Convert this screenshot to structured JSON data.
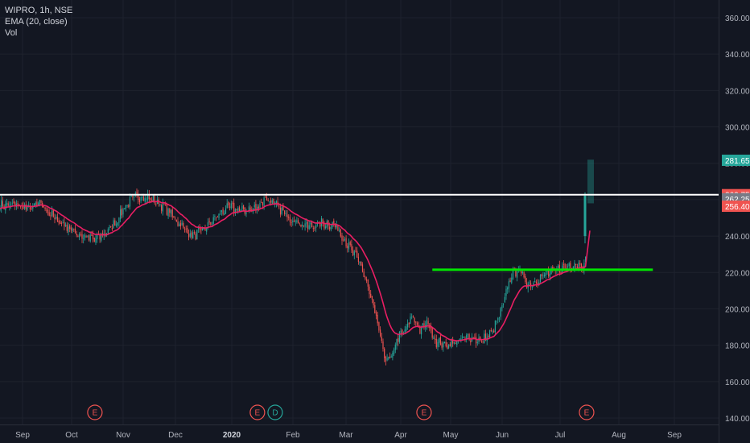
{
  "legend": {
    "symbol_line": "WIPRO, 1h, NSE",
    "indicator_line": "EMA (20, close)",
    "volume_line": "Vol"
  },
  "colors": {
    "background": "#131722",
    "grid": "#1e222d",
    "up_candle": "#26a69a",
    "down_candle": "#ef5350",
    "ema": "#e91e63",
    "support_line": "#00e600",
    "resistance_line": "#ffffff",
    "axis_text": "#b2b5be",
    "earnings_marker": "#ef5350",
    "dividend_marker": "#26a69a"
  },
  "chart_data": {
    "type": "candlestick",
    "symbol": "WIPRO",
    "interval": "1h",
    "exchange": "NSE",
    "indicators": [
      "EMA (20, close)",
      "Vol"
    ],
    "y_axis": {
      "ticks": [
        140,
        160,
        180,
        200,
        220,
        240,
        260,
        280,
        300,
        320,
        340,
        360
      ],
      "tick_labels": [
        "140.00",
        "160.00",
        "180.00",
        "200.00",
        "220.00",
        "240.00",
        "260.00",
        "280.00",
        "300.00",
        "320.00",
        "340.00",
        "360.00"
      ],
      "range": [
        138,
        368
      ]
    },
    "x_axis": {
      "labels": [
        "Sep",
        "Oct",
        "Nov",
        "Dec",
        "2020",
        "Feb",
        "Mar",
        "Apr",
        "May",
        "Jun",
        "Jul",
        "Aug",
        "Sep"
      ],
      "bold_labels": [
        "2020"
      ]
    },
    "price_path": [
      [
        "2019-08-29",
        257
      ],
      [
        "2019-09-05",
        255
      ],
      [
        "2019-09-12",
        258
      ],
      [
        "2019-09-20",
        250
      ],
      [
        "2019-09-30",
        244
      ],
      [
        "2019-10-07",
        240
      ],
      [
        "2019-10-15",
        238
      ],
      [
        "2019-10-22",
        242
      ],
      [
        "2019-10-28",
        248
      ],
      [
        "2019-11-01",
        255
      ],
      [
        "2019-11-07",
        261
      ],
      [
        "2019-11-12",
        262
      ],
      [
        "2019-11-18",
        260
      ],
      [
        "2019-11-25",
        256
      ],
      [
        "2019-12-02",
        248
      ],
      [
        "2019-12-10",
        240
      ],
      [
        "2019-12-16",
        243
      ],
      [
        "2019-12-23",
        250
      ],
      [
        "2019-12-30",
        256
      ],
      [
        "2020-01-06",
        254
      ],
      [
        "2020-01-13",
        255
      ],
      [
        "2020-01-18",
        261
      ],
      [
        "2020-01-22",
        258
      ],
      [
        "2020-01-28",
        252
      ],
      [
        "2020-02-03",
        248
      ],
      [
        "2020-02-10",
        245
      ],
      [
        "2020-02-17",
        247
      ],
      [
        "2020-02-24",
        246
      ],
      [
        "2020-02-28",
        240
      ],
      [
        "2020-03-04",
        232
      ],
      [
        "2020-03-09",
        225
      ],
      [
        "2020-03-13",
        213
      ],
      [
        "2020-03-18",
        195
      ],
      [
        "2020-03-23",
        173
      ],
      [
        "2020-03-26",
        171
      ],
      [
        "2020-03-30",
        184
      ],
      [
        "2020-04-03",
        187
      ],
      [
        "2020-04-08",
        196
      ],
      [
        "2020-04-13",
        188
      ],
      [
        "2020-04-17",
        193
      ],
      [
        "2020-04-22",
        182
      ],
      [
        "2020-04-28",
        180
      ],
      [
        "2020-05-05",
        182
      ],
      [
        "2020-05-12",
        185
      ],
      [
        "2020-05-19",
        182
      ],
      [
        "2020-05-26",
        187
      ],
      [
        "2020-06-01",
        200
      ],
      [
        "2020-06-05",
        217
      ],
      [
        "2020-06-09",
        222
      ],
      [
        "2020-06-15",
        213
      ],
      [
        "2020-06-22",
        218
      ],
      [
        "2020-06-29",
        221
      ],
      [
        "2020-07-06",
        224
      ],
      [
        "2020-07-10",
        225
      ],
      [
        "2020-07-14",
        224
      ],
      [
        "2020-07-15",
        229
      ],
      [
        "2020-07-16",
        262
      ]
    ],
    "last_spike": {
      "open": 240,
      "high": 264,
      "low": 236,
      "close": 262.25
    },
    "volume_spike": {
      "top": 282,
      "bottom": 258
    },
    "price_labels": [
      {
        "value": "281.65",
        "price": 281.65,
        "color": "#26a69a"
      },
      {
        "value": "262.75",
        "price": 262.75,
        "color": "#ef5350"
      },
      {
        "value": "262.25",
        "price": 260.5,
        "color": "#787b86"
      },
      {
        "value": "256.40",
        "price": 256.4,
        "color": "#ef5350"
      }
    ],
    "horizontal_lines": [
      {
        "name": "resistance",
        "price": 262.75,
        "from": "start",
        "to": "end",
        "color": "#ffffff"
      },
      {
        "name": "support",
        "price": 221.5,
        "from": "2020-04-20",
        "to": "2020-08-20",
        "color": "#00e600"
      }
    ],
    "event_markers": [
      {
        "label": "E",
        "date": "2019-10-15",
        "kind": "earnings"
      },
      {
        "label": "E",
        "date": "2020-01-14",
        "kind": "earnings"
      },
      {
        "label": "D",
        "date": "2020-01-23",
        "kind": "dividend"
      },
      {
        "label": "E",
        "date": "2020-04-15",
        "kind": "earnings"
      },
      {
        "label": "E",
        "date": "2020-07-15",
        "kind": "earnings"
      }
    ]
  }
}
